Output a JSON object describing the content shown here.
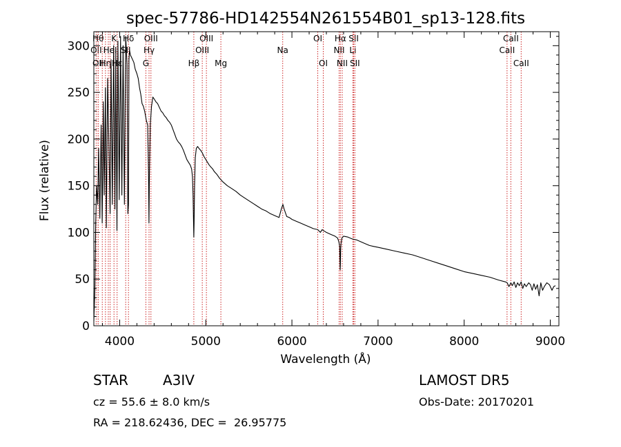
{
  "chart_data": {
    "type": "line",
    "title": "spec-57786-HD142554N261554B01_sp13-128.fits",
    "xlabel": "Wavelength (Å)",
    "ylabel": "Flux (relative)",
    "xlim": [
      3700,
      9100
    ],
    "ylim": [
      0,
      315
    ],
    "xticks": [
      4000,
      5000,
      6000,
      7000,
      8000,
      9000
    ],
    "yticks": [
      0,
      50,
      100,
      150,
      200,
      250,
      300
    ],
    "grid": false,
    "series": [
      {
        "x": [
          3700,
          3712,
          3722,
          3732,
          3745,
          3755,
          3770,
          3785,
          3797,
          3810,
          3820,
          3835,
          3845,
          3860,
          3875,
          3889,
          3900,
          3915,
          3930,
          3945,
          3955,
          3968,
          3980,
          3995,
          4010,
          4025,
          4040,
          4055,
          4070,
          4085,
          4095,
          4102,
          4108,
          4115,
          4125,
          4135,
          4150,
          4165,
          4180,
          4200,
          4215,
          4230,
          4245,
          4260,
          4275,
          4290,
          4310,
          4325,
          4335,
          4340,
          4345,
          4355,
          4370,
          4385,
          4400,
          4420,
          4440,
          4460,
          4480,
          4500,
          4520,
          4540,
          4560,
          4580,
          4600,
          4620,
          4640,
          4660,
          4680,
          4700,
          4720,
          4740,
          4760,
          4780,
          4800,
          4820,
          4835,
          4845,
          4852,
          4858,
          4861,
          4864,
          4870,
          4878,
          4890,
          4905,
          4920,
          4940,
          4960,
          4980,
          5000,
          5020,
          5040,
          5060,
          5080,
          5100,
          5130,
          5160,
          5180,
          5200,
          5250,
          5300,
          5350,
          5400,
          5450,
          5500,
          5550,
          5600,
          5650,
          5700,
          5750,
          5800,
          5850,
          5880,
          5895,
          5910,
          5940,
          5970,
          6000,
          6050,
          6100,
          6150,
          6200,
          6250,
          6300,
          6330,
          6350,
          6400,
          6450,
          6500,
          6530,
          6545,
          6555,
          6560,
          6563,
          6566,
          6570,
          6580,
          6600,
          6650,
          6700,
          6750,
          6800,
          6850,
          6900,
          6950,
          7000,
          7100,
          7200,
          7300,
          7400,
          7500,
          7600,
          7700,
          7800,
          7900,
          8000,
          8100,
          8200,
          8300,
          8400,
          8480,
          8500,
          8520,
          8542,
          8560,
          8580,
          8600,
          8620,
          8640,
          8662,
          8680,
          8700,
          8720,
          8750,
          8770,
          8790,
          8810,
          8830,
          8850,
          8870,
          8890,
          8910,
          8930,
          8960,
          8990,
          9020,
          9040,
          9060
        ],
        "y": [
          5,
          40,
          110,
          150,
          130,
          190,
          115,
          215,
          110,
          240,
          140,
          255,
          105,
          265,
          195,
          120,
          285,
          130,
          300,
          125,
          295,
          102,
          305,
          135,
          310,
          140,
          300,
          130,
          310,
          280,
          120,
          130,
          285,
          295,
          290,
          288,
          285,
          282,
          275,
          270,
          265,
          255,
          248,
          238,
          235,
          230,
          220,
          215,
          160,
          110,
          160,
          215,
          235,
          245,
          243,
          240,
          238,
          234,
          230,
          228,
          225,
          223,
          220,
          218,
          215,
          210,
          205,
          200,
          197,
          195,
          192,
          188,
          183,
          178,
          175,
          172,
          168,
          160,
          140,
          110,
          95,
          110,
          150,
          180,
          190,
          192,
          190,
          188,
          185,
          181,
          178,
          175,
          172,
          170,
          168,
          165,
          162,
          158,
          156,
          154,
          150,
          147,
          144,
          140,
          137,
          134,
          131,
          128,
          125,
          123,
          120,
          118,
          116,
          126,
          130,
          125,
          117,
          116,
          114,
          112,
          110,
          108,
          106,
          104,
          103,
          100,
          103,
          100,
          98,
          96,
          94,
          90,
          85,
          60,
          65,
          82,
          88,
          94,
          96,
          95,
          93,
          92,
          90,
          88,
          86,
          85,
          84,
          82,
          80,
          78,
          76,
          73,
          70,
          67,
          64,
          61,
          58,
          56,
          54,
          52,
          49,
          47,
          46,
          42,
          46,
          43,
          47,
          41,
          46,
          43,
          47,
          40,
          45,
          42,
          46,
          44,
          38,
          45,
          39,
          44,
          32,
          46,
          38,
          42,
          46,
          44,
          38,
          42,
          43
        ]
      }
    ],
    "lines": [
      {
        "x": 3750,
        "label": "Hθ",
        "row": 1
      },
      {
        "x": 3727,
        "label": "OII",
        "row": 2
      },
      {
        "x": 3750,
        "label": "OII",
        "row": 3
      },
      {
        "x": 3798,
        "label": "",
        "row": 0
      },
      {
        "x": 3835,
        "label": "Hη",
        "row": 3
      },
      {
        "x": 3868,
        "label": "",
        "row": 0
      },
      {
        "x": 3889,
        "label": "HeI",
        "row": 2
      },
      {
        "x": 3934,
        "label": "K",
        "row": 1
      },
      {
        "x": 3970,
        "label": "Hε",
        "row": 3
      },
      {
        "x": 4070,
        "label": "SII",
        "row": 2
      },
      {
        "x": 4102,
        "label": "Hδ",
        "row": 1
      },
      {
        "x": 4304,
        "label": "G",
        "row": 3
      },
      {
        "x": 4341,
        "label": "Hγ",
        "row": 2
      },
      {
        "x": 4363,
        "label": "OIII",
        "row": 1
      },
      {
        "x": 4861,
        "label": "Hβ",
        "row": 3
      },
      {
        "x": 4959,
        "label": "OIII",
        "row": 2
      },
      {
        "x": 5007,
        "label": "OIII",
        "row": 1
      },
      {
        "x": 5175,
        "label": "Mg",
        "row": 3
      },
      {
        "x": 5893,
        "label": "Na",
        "row": 2
      },
      {
        "x": 6300,
        "label": "OI",
        "row": 1
      },
      {
        "x": 6364,
        "label": "OI",
        "row": 3
      },
      {
        "x": 6548,
        "label": "NII",
        "row": 2
      },
      {
        "x": 6563,
        "label": "Hα",
        "row": 1
      },
      {
        "x": 6584,
        "label": "NII",
        "row": 3
      },
      {
        "x": 6708,
        "label": "Li",
        "row": 2
      },
      {
        "x": 6717,
        "label": "SII",
        "row": 1
      },
      {
        "x": 6731,
        "label": "SII",
        "row": 3
      },
      {
        "x": 8498,
        "label": "CaII",
        "row": 2
      },
      {
        "x": 8542,
        "label": "CaII",
        "row": 1
      },
      {
        "x": 8662,
        "label": "CaII",
        "row": 3
      }
    ],
    "line_color": "#cc2222"
  },
  "info": {
    "class_label": "STAR",
    "subclass": "A3IV",
    "survey": "LAMOST DR5",
    "redshift": "cz = 55.6 ± 8.0 km/s",
    "obs_date": "Obs-Date: 20170201",
    "coords": "RA = 218.62436, DEC =  26.95775"
  }
}
